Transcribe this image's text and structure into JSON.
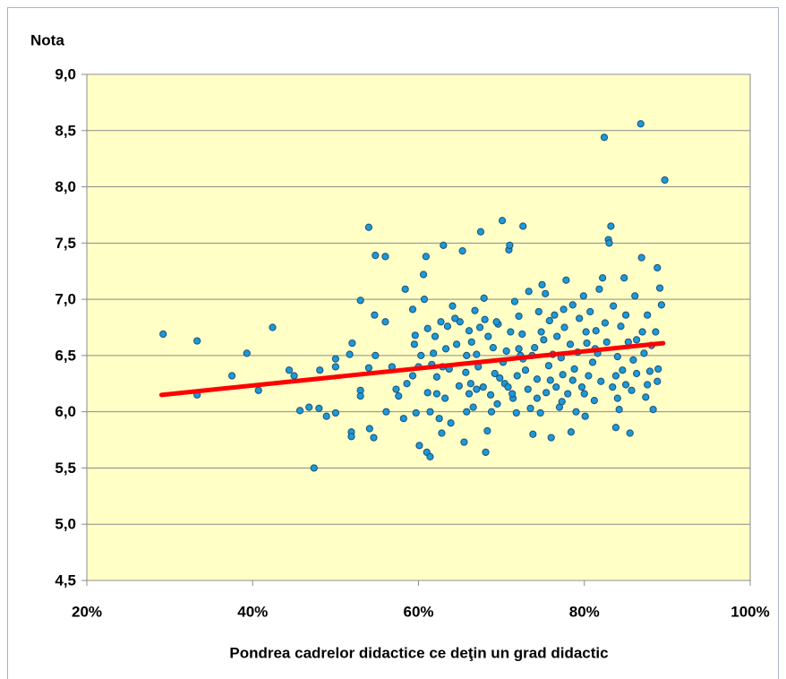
{
  "chart_data": {
    "type": "scatter",
    "y_label": "Nota",
    "x_label": "Pondrea cadrelor didactice ce deţin un grad didactic",
    "xlim": [
      20,
      100
    ],
    "xticks": [
      {
        "value": 20,
        "label": "20%"
      },
      {
        "value": 40,
        "label": "40%"
      },
      {
        "value": 60,
        "label": "60%"
      },
      {
        "value": 80,
        "label": "80%"
      },
      {
        "value": 100,
        "label": "100%"
      }
    ],
    "ylim": [
      4.5,
      9
    ],
    "yticks": [
      {
        "value": 4.5,
        "label": "4,5"
      },
      {
        "value": 5,
        "label": "5,0"
      },
      {
        "value": 5.5,
        "label": "5,5"
      },
      {
        "value": 6,
        "label": "6,0"
      },
      {
        "value": 6.5,
        "label": "6,5"
      },
      {
        "value": 7,
        "label": "7,0"
      },
      {
        "value": 7.5,
        "label": "7,5"
      },
      {
        "value": 8,
        "label": "8,0"
      },
      {
        "value": 8.5,
        "label": "8,5"
      },
      {
        "value": 9,
        "label": "9,0"
      }
    ],
    "grid": true,
    "color": "#1b9ad6",
    "x": [
      29.2,
      33.3,
      33.3,
      37.5,
      39.3,
      40.7,
      42.4,
      44.4,
      45.0,
      45.7,
      46.8,
      47.4,
      48.0,
      48.1,
      48.9,
      50.0,
      50.0,
      50.0,
      51.7,
      51.9,
      51.9,
      52.0,
      53.0,
      53.0,
      53.0,
      54.0,
      54.0,
      54.1,
      54.6,
      54.7,
      54.8,
      54.8,
      56.0,
      56.0,
      56.1,
      56.8,
      57.3,
      57.6,
      58.4,
      58.2,
      58.6,
      59.3,
      59.3,
      59.5,
      59.6,
      59.7,
      60.1,
      60.3,
      60.6,
      60.7,
      60.9,
      61.1,
      61.1,
      61.0,
      61.4,
      61.4,
      61.6,
      62.0,
      62.2,
      62.2,
      62.5,
      62.7,
      62.8,
      63.0,
      63.2,
      63.3,
      63.7,
      63.9,
      64.1,
      64.6,
      64.9,
      65.0,
      65.3,
      65.5,
      65.8,
      65.8,
      66.1,
      66.3,
      66.4,
      66.6,
      66.8,
      67.0,
      67.2,
      67.4,
      67.5,
      67.8,
      67.9,
      68.0,
      68.1,
      68.3,
      68.7,
      68.8,
      69.0,
      69.2,
      69.5,
      69.6,
      70.1,
      70.2,
      70.4,
      70.6,
      70.8,
      70.9,
      71.0,
      71.1,
      71.4,
      71.6,
      71.8,
      71.9,
      72.1,
      72.3,
      72.5,
      72.6,
      72.9,
      73.2,
      73.3,
      73.5,
      73.7,
      73.8,
      74.0,
      74.3,
      74.5,
      74.7,
      74.9,
      75.1,
      75.3,
      75.4,
      75.7,
      75.8,
      76.0,
      76.2,
      76.4,
      76.6,
      76.7,
      77.0,
      77.2,
      77.4,
      77.6,
      77.8,
      78.0,
      78.3,
      78.4,
      78.6,
      78.8,
      79.0,
      79.2,
      79.4,
      79.7,
      79.9,
      80.1,
      80.3,
      80.5,
      80.7,
      81.0,
      81.2,
      81.4,
      81.6,
      81.8,
      82.0,
      82.2,
      82.4,
      82.7,
      82.9,
      83.0,
      83.2,
      83.4,
      83.5,
      83.8,
      84.0,
      84.2,
      84.4,
      84.6,
      84.8,
      85.0,
      85.3,
      85.5,
      85.7,
      85.9,
      86.1,
      86.3,
      86.8,
      86.9,
      87.0,
      87.2,
      87.4,
      87.6,
      87.9,
      88.1,
      88.3,
      88.6,
      88.8,
      88.9,
      89.1,
      89.3,
      89.7,
      64.4,
      65.7,
      67.0,
      68.4,
      69.8,
      71.3,
      72.6,
      74.3,
      75.9,
      77.3,
      78.6,
      80.0,
      81.3,
      82.5,
      83.8,
      85.0,
      86.3,
      87.6,
      80.2,
      77.5,
      74.8,
      72.1,
      69.4,
      66.1,
      62.9,
      60.0,
      61.8,
      63.5,
      88.8,
      84.0
    ],
    "y": [
      6.69,
      6.63,
      6.15,
      6.32,
      6.52,
      6.19,
      6.75,
      6.37,
      6.32,
      6.01,
      6.04,
      5.5,
      6.03,
      6.37,
      5.96,
      5.99,
      6.47,
      6.4,
      6.51,
      5.82,
      5.78,
      6.61,
      6.99,
      6.19,
      6.14,
      7.64,
      6.39,
      5.85,
      5.77,
      6.86,
      6.5,
      7.39,
      7.38,
      6.8,
      6.0,
      6.4,
      6.2,
      6.14,
      7.09,
      5.94,
      6.25,
      6.32,
      6.91,
      6.6,
      6.68,
      5.99,
      5.7,
      6.5,
      7.22,
      7.0,
      7.38,
      6.74,
      6.17,
      5.64,
      5.6,
      6.0,
      6.42,
      6.67,
      6.31,
      6.16,
      5.94,
      6.8,
      5.81,
      7.48,
      6.12,
      6.56,
      6.38,
      5.9,
      6.94,
      6.6,
      6.23,
      6.8,
      7.43,
      5.73,
      6.0,
      6.5,
      6.72,
      6.25,
      6.62,
      6.04,
      6.9,
      6.2,
      6.4,
      6.75,
      7.6,
      6.22,
      7.01,
      6.82,
      5.64,
      5.83,
      6.15,
      6.0,
      6.57,
      6.34,
      6.07,
      6.78,
      7.7,
      6.44,
      6.25,
      6.54,
      6.22,
      7.44,
      7.48,
      6.71,
      6.12,
      6.98,
      5.99,
      6.32,
      6.85,
      6.5,
      6.69,
      7.65,
      6.37,
      6.2,
      7.07,
      6.03,
      6.5,
      5.8,
      6.57,
      6.29,
      6.89,
      5.99,
      7.13,
      6.64,
      7.05,
      6.17,
      6.41,
      6.81,
      5.77,
      6.51,
      6.86,
      6.22,
      6.67,
      6.04,
      6.48,
      6.33,
      6.75,
      7.17,
      6.16,
      6.6,
      5.82,
      6.95,
      6.38,
      6.0,
      6.53,
      6.83,
      6.22,
      7.03,
      5.96,
      6.61,
      6.32,
      6.89,
      6.44,
      6.1,
      6.72,
      6.52,
      7.09,
      6.27,
      7.19,
      8.44,
      6.62,
      7.53,
      7.5,
      7.65,
      6.22,
      6.94,
      5.86,
      6.49,
      6.02,
      6.76,
      6.37,
      7.19,
      6.86,
      6.62,
      5.81,
      6.19,
      6.46,
      7.03,
      6.34,
      8.56,
      7.37,
      6.71,
      6.52,
      6.13,
      6.86,
      6.36,
      6.59,
      6.02,
      6.71,
      7.28,
      6.38,
      7.1,
      6.95,
      8.06,
      6.83,
      6.35,
      6.51,
      6.67,
      6.3,
      6.16,
      6.47,
      6.12,
      6.28,
      6.09,
      6.28,
      6.16,
      6.56,
      6.79,
      6.32,
      6.24,
      6.64,
      6.24,
      6.71,
      6.91,
      6.71,
      6.56,
      6.8,
      6.16,
      6.4,
      6.4,
      6.52,
      6.76,
      6.27,
      6.12
    ],
    "trendline": {
      "x": [
        29,
        89.5
      ],
      "y": [
        6.15,
        6.61
      ],
      "color": "#ff0000"
    }
  }
}
